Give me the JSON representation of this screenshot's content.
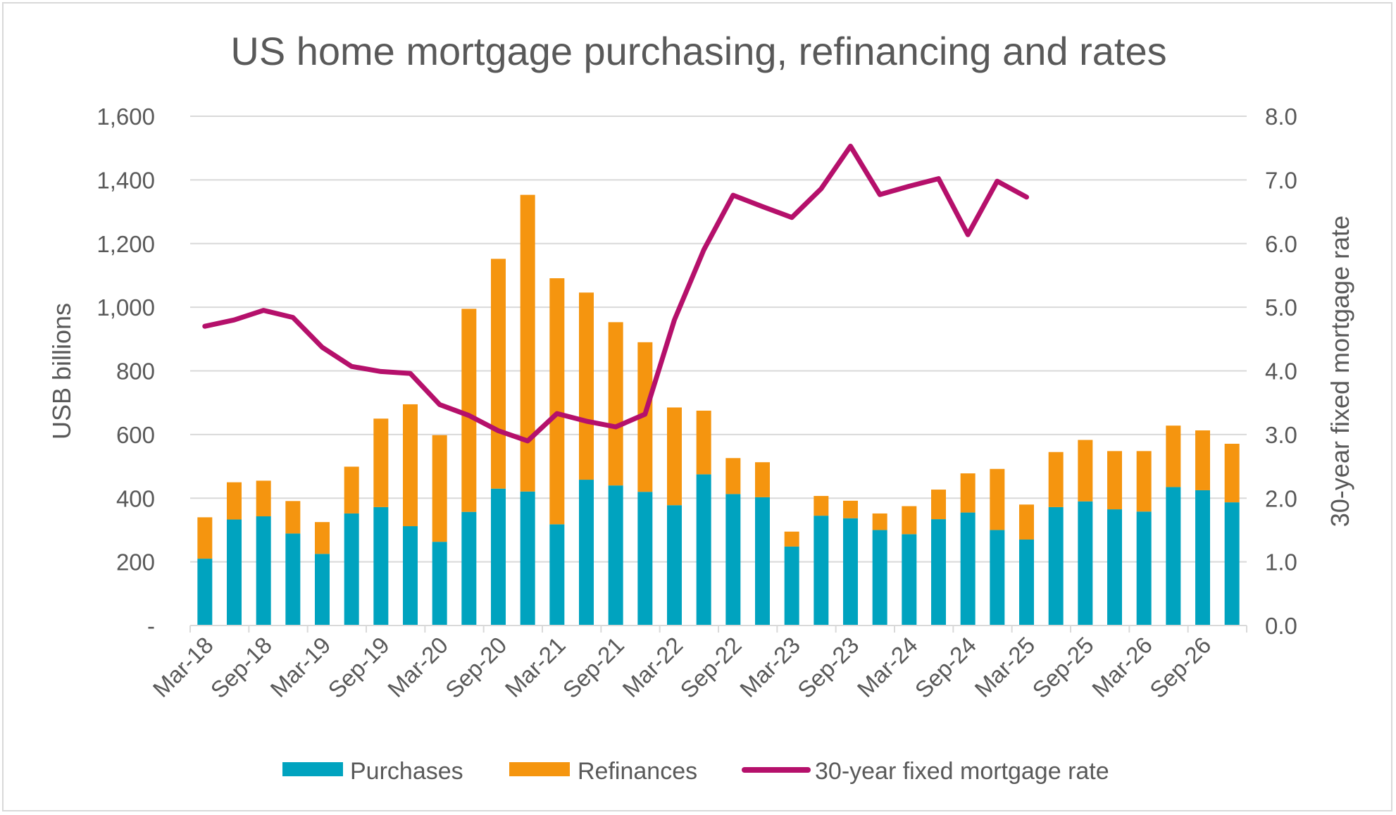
{
  "chart_data": {
    "type": "bar",
    "title": "US home mortgage purchasing, refinancing and rates",
    "ylabel": "USB billions",
    "y2label": "30-year fixed mortgage rate",
    "ylim": [
      0,
      1600
    ],
    "y2lim": [
      0,
      8
    ],
    "yticks": [
      "-",
      "200",
      "400",
      "600",
      "800",
      "1,000",
      "1,200",
      "1,400",
      "1,600"
    ],
    "y2ticks": [
      "0.0",
      "1.0",
      "2.0",
      "3.0",
      "4.0",
      "5.0",
      "6.0",
      "7.0",
      "8.0"
    ],
    "xtick_labels": [
      "Mar-18",
      "Sep-18",
      "Mar-19",
      "Sep-19",
      "Mar-20",
      "Sep-20",
      "Mar-21",
      "Sep-21",
      "Mar-22",
      "Sep-22",
      "Mar-23",
      "Sep-23",
      "Mar-24",
      "Sep-24",
      "Mar-25",
      "Sep-25",
      "Mar-26",
      "Sep-26"
    ],
    "stacked": true,
    "grid": true,
    "legend_position": "bottom",
    "categories": [
      "Mar-18",
      "Jun-18",
      "Sep-18",
      "Dec-18",
      "Mar-19",
      "Jun-19",
      "Sep-19",
      "Dec-19",
      "Mar-20",
      "Jun-20",
      "Sep-20",
      "Dec-20",
      "Mar-21",
      "Jun-21",
      "Sep-21",
      "Dec-21",
      "Mar-22",
      "Jun-22",
      "Sep-22",
      "Dec-22",
      "Mar-23",
      "Jun-23",
      "Sep-23",
      "Dec-23",
      "Mar-24",
      "Jun-24",
      "Sep-24",
      "Dec-24",
      "Mar-25",
      "Jun-25",
      "Sep-25",
      "Dec-25",
      "Mar-26",
      "Jun-26",
      "Sep-26",
      "Dec-26"
    ],
    "series": [
      {
        "name": "Purchases",
        "kind": "bar",
        "color": "#00a3bf",
        "values": [
          210,
          333,
          343,
          289,
          225,
          352,
          372,
          312,
          263,
          357,
          430,
          421,
          318,
          458,
          440,
          420,
          378,
          475,
          413,
          403,
          248,
          345,
          337,
          300,
          287,
          334,
          355,
          300,
          270,
          372,
          390,
          365,
          358,
          435,
          425,
          387
        ]
      },
      {
        "name": "Refinances",
        "kind": "bar",
        "color": "#f5950f",
        "values": [
          130,
          117,
          112,
          102,
          100,
          147,
          278,
          383,
          335,
          638,
          722,
          932,
          773,
          588,
          513,
          470,
          307,
          200,
          113,
          110,
          47,
          62,
          55,
          52,
          88,
          93,
          123,
          192,
          110,
          173,
          193,
          183,
          190,
          193,
          188,
          184
        ]
      },
      {
        "name": "30-year fixed mortgage rate",
        "kind": "line",
        "axis": "right",
        "color": "#b5106b",
        "values": [
          4.7,
          4.8,
          4.95,
          4.84,
          4.37,
          4.07,
          3.99,
          3.96,
          3.47,
          3.3,
          3.06,
          2.9,
          3.33,
          3.21,
          3.12,
          3.32,
          4.8,
          5.9,
          6.76,
          6.58,
          6.41,
          6.86,
          7.53,
          6.77,
          6.9,
          7.02,
          6.14,
          6.98,
          6.73,
          null,
          null,
          null,
          null,
          null,
          null,
          null
        ]
      }
    ]
  }
}
